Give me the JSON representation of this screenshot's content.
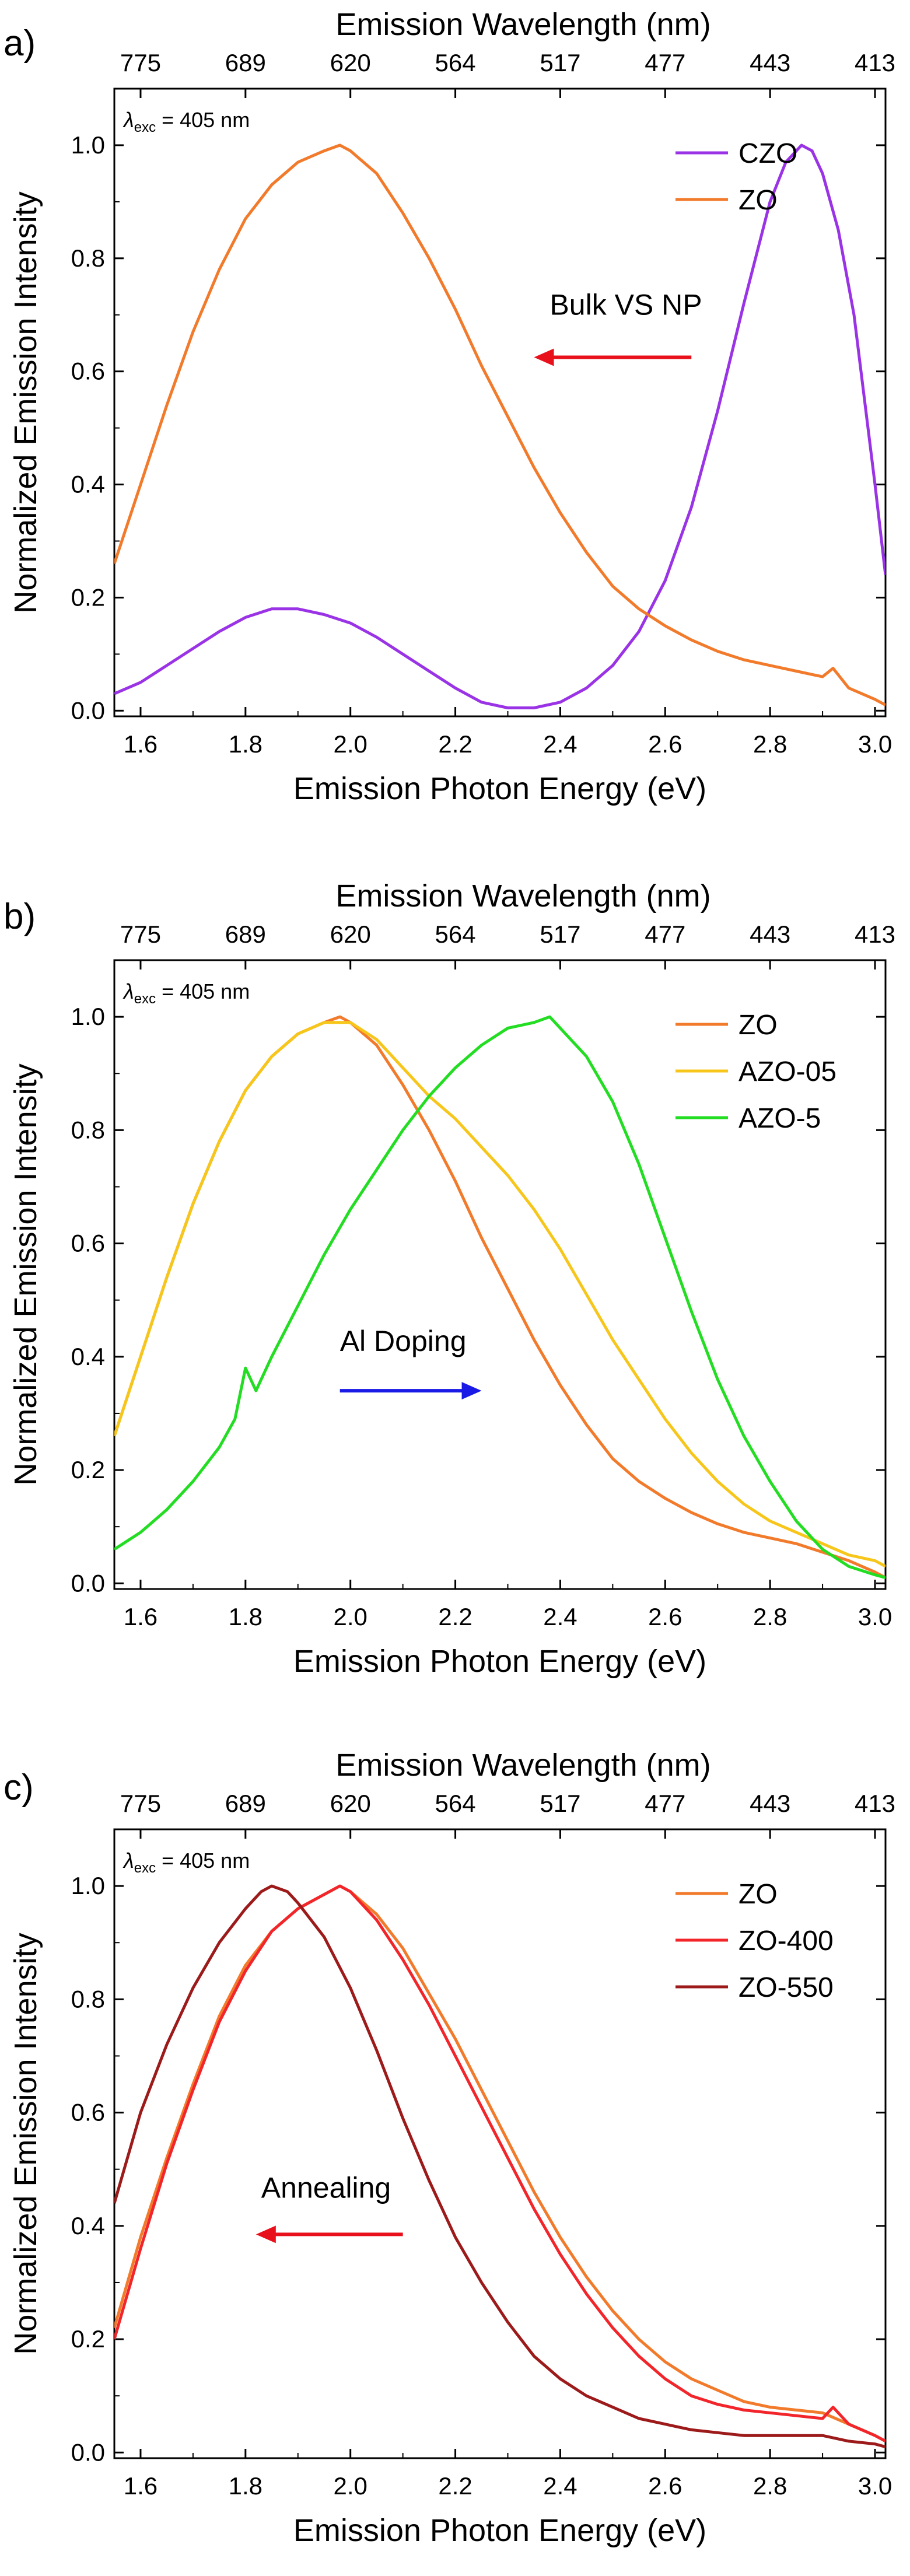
{
  "figure": {
    "top_axis_title": "Emission Wavelength (nm)",
    "bottom_axis_title": "Emission Photon Energy (eV)",
    "left_axis_title": "Normalized Emission Intensity",
    "excitation_prefix": "λ",
    "excitation_sub": "exc",
    "excitation_value": " = 405 nm"
  },
  "chart_data": [
    {
      "panel": "a)",
      "type": "line",
      "x_label": "Emission Photon Energy (eV)",
      "x2_label": "Emission Wavelength (nm)",
      "y_label": "Normalized Emission Intensity",
      "xlim": [
        1.55,
        3.02
      ],
      "ylim": [
        -0.01,
        1.1
      ],
      "x_ticks": [
        1.6,
        1.8,
        2.0,
        2.2,
        2.4,
        2.6,
        2.8,
        3.0
      ],
      "x_tick_labels": [
        "1.6",
        "1.8",
        "2.0",
        "2.2",
        "2.4",
        "2.6",
        "2.8",
        "3.0"
      ],
      "y_ticks": [
        0.0,
        0.2,
        0.4,
        0.6,
        0.8,
        1.0
      ],
      "y_tick_labels": [
        "0.0",
        "0.2",
        "0.4",
        "0.6",
        "0.8",
        "1.0"
      ],
      "top_ticks": [
        1.6,
        1.8,
        2.0,
        2.2,
        2.4,
        2.6,
        2.8,
        3.0
      ],
      "top_tick_labels": [
        "775",
        "689",
        "620",
        "564",
        "517",
        "477",
        "443",
        "413"
      ],
      "annotation": {
        "text": "Bulk VS NP",
        "arrow_color": "#e8101a",
        "arrow_from": 2.65,
        "arrow_to": 2.35,
        "arrow_y": 0.625,
        "text_x": 2.38,
        "text_y": 0.7
      },
      "series": [
        {
          "name": "CZO",
          "color": "#9a33e6",
          "x": [
            1.55,
            1.6,
            1.65,
            1.7,
            1.75,
            1.8,
            1.85,
            1.9,
            1.95,
            2.0,
            2.05,
            2.1,
            2.15,
            2.2,
            2.25,
            2.3,
            2.35,
            2.4,
            2.45,
            2.5,
            2.55,
            2.6,
            2.65,
            2.7,
            2.75,
            2.8,
            2.83,
            2.86,
            2.88,
            2.9,
            2.93,
            2.96,
            3.0,
            3.02
          ],
          "y": [
            0.03,
            0.05,
            0.08,
            0.11,
            0.14,
            0.165,
            0.18,
            0.18,
            0.17,
            0.155,
            0.13,
            0.1,
            0.07,
            0.04,
            0.015,
            0.005,
            0.005,
            0.015,
            0.04,
            0.08,
            0.14,
            0.23,
            0.36,
            0.53,
            0.72,
            0.9,
            0.97,
            1.0,
            0.99,
            0.95,
            0.85,
            0.7,
            0.4,
            0.24
          ]
        },
        {
          "name": "ZO",
          "color": "#f27a2b",
          "x": [
            1.55,
            1.6,
            1.65,
            1.7,
            1.75,
            1.8,
            1.85,
            1.9,
            1.95,
            1.98,
            2.0,
            2.05,
            2.1,
            2.15,
            2.2,
            2.25,
            2.3,
            2.35,
            2.4,
            2.45,
            2.5,
            2.55,
            2.6,
            2.65,
            2.7,
            2.75,
            2.8,
            2.85,
            2.9,
            2.92,
            2.95,
            3.0,
            3.02
          ],
          "y": [
            0.26,
            0.4,
            0.54,
            0.67,
            0.78,
            0.87,
            0.93,
            0.97,
            0.99,
            1.0,
            0.99,
            0.95,
            0.88,
            0.8,
            0.71,
            0.61,
            0.52,
            0.43,
            0.35,
            0.28,
            0.22,
            0.18,
            0.15,
            0.125,
            0.105,
            0.09,
            0.08,
            0.07,
            0.06,
            0.075,
            0.04,
            0.02,
            0.01
          ]
        }
      ]
    },
    {
      "panel": "b)",
      "type": "line",
      "x_label": "Emission Photon Energy (eV)",
      "x2_label": "Emission Wavelength (nm)",
      "y_label": "Normalized Emission Intensity",
      "xlim": [
        1.55,
        3.02
      ],
      "ylim": [
        -0.01,
        1.1
      ],
      "x_ticks": [
        1.6,
        1.8,
        2.0,
        2.2,
        2.4,
        2.6,
        2.8,
        3.0
      ],
      "x_tick_labels": [
        "1.6",
        "1.8",
        "2.0",
        "2.2",
        "2.4",
        "2.6",
        "2.8",
        "3.0"
      ],
      "y_ticks": [
        0.0,
        0.2,
        0.4,
        0.6,
        0.8,
        1.0
      ],
      "y_tick_labels": [
        "0.0",
        "0.2",
        "0.4",
        "0.6",
        "0.8",
        "1.0"
      ],
      "top_ticks": [
        1.6,
        1.8,
        2.0,
        2.2,
        2.4,
        2.6,
        2.8,
        3.0
      ],
      "top_tick_labels": [
        "775",
        "689",
        "620",
        "564",
        "517",
        "477",
        "443",
        "413"
      ],
      "annotation": {
        "text": "Al Doping",
        "arrow_color": "#1a1ae6",
        "arrow_from": 1.98,
        "arrow_to": 2.25,
        "arrow_y": 0.34,
        "text_x": 1.98,
        "text_y": 0.41
      },
      "series": [
        {
          "name": "ZO",
          "color": "#f27a2b",
          "x": [
            1.55,
            1.6,
            1.65,
            1.7,
            1.75,
            1.8,
            1.85,
            1.9,
            1.95,
            1.98,
            2.0,
            2.05,
            2.1,
            2.15,
            2.2,
            2.25,
            2.3,
            2.35,
            2.4,
            2.45,
            2.5,
            2.55,
            2.6,
            2.65,
            2.7,
            2.75,
            2.8,
            2.85,
            2.9,
            2.95,
            3.0,
            3.02
          ],
          "y": [
            0.26,
            0.4,
            0.54,
            0.67,
            0.78,
            0.87,
            0.93,
            0.97,
            0.99,
            1.0,
            0.99,
            0.95,
            0.88,
            0.8,
            0.71,
            0.61,
            0.52,
            0.43,
            0.35,
            0.28,
            0.22,
            0.18,
            0.15,
            0.125,
            0.105,
            0.09,
            0.08,
            0.07,
            0.055,
            0.04,
            0.02,
            0.01
          ]
        },
        {
          "name": "AZO-05",
          "color": "#f7c61a",
          "x": [
            1.55,
            1.6,
            1.65,
            1.7,
            1.75,
            1.8,
            1.85,
            1.9,
            1.95,
            2.0,
            2.05,
            2.1,
            2.15,
            2.2,
            2.25,
            2.3,
            2.35,
            2.4,
            2.45,
            2.5,
            2.55,
            2.6,
            2.65,
            2.7,
            2.75,
            2.8,
            2.85,
            2.9,
            2.95,
            3.0,
            3.02
          ],
          "y": [
            0.26,
            0.4,
            0.54,
            0.67,
            0.78,
            0.87,
            0.93,
            0.97,
            0.99,
            0.99,
            0.96,
            0.91,
            0.86,
            0.82,
            0.77,
            0.72,
            0.66,
            0.59,
            0.51,
            0.43,
            0.36,
            0.29,
            0.23,
            0.18,
            0.14,
            0.11,
            0.09,
            0.07,
            0.05,
            0.04,
            0.03
          ]
        },
        {
          "name": "AZO-5",
          "color": "#22dd22",
          "x": [
            1.55,
            1.6,
            1.65,
            1.7,
            1.75,
            1.78,
            1.8,
            1.82,
            1.85,
            1.9,
            1.95,
            2.0,
            2.05,
            2.1,
            2.15,
            2.2,
            2.25,
            2.3,
            2.35,
            2.38,
            2.4,
            2.45,
            2.5,
            2.55,
            2.6,
            2.65,
            2.7,
            2.75,
            2.8,
            2.85,
            2.9,
            2.95,
            3.0,
            3.02
          ],
          "y": [
            0.06,
            0.09,
            0.13,
            0.18,
            0.24,
            0.29,
            0.38,
            0.34,
            0.4,
            0.49,
            0.58,
            0.66,
            0.73,
            0.8,
            0.86,
            0.91,
            0.95,
            0.98,
            0.99,
            1.0,
            0.98,
            0.93,
            0.85,
            0.74,
            0.61,
            0.48,
            0.36,
            0.26,
            0.18,
            0.11,
            0.06,
            0.03,
            0.015,
            0.01
          ]
        }
      ]
    },
    {
      "panel": "c)",
      "type": "line",
      "x_label": "Emission Photon Energy (eV)",
      "x2_label": "Emission Wavelength (nm)",
      "y_label": "Normalized Emission Intensity",
      "xlim": [
        1.55,
        3.02
      ],
      "ylim": [
        -0.01,
        1.1
      ],
      "x_ticks": [
        1.6,
        1.8,
        2.0,
        2.2,
        2.4,
        2.6,
        2.8,
        3.0
      ],
      "x_tick_labels": [
        "1.6",
        "1.8",
        "2.0",
        "2.2",
        "2.4",
        "2.6",
        "2.8",
        "3.0"
      ],
      "y_ticks": [
        0.0,
        0.2,
        0.4,
        0.6,
        0.8,
        1.0
      ],
      "y_tick_labels": [
        "0.0",
        "0.2",
        "0.4",
        "0.6",
        "0.8",
        "1.0"
      ],
      "top_ticks": [
        1.6,
        1.8,
        2.0,
        2.2,
        2.4,
        2.6,
        2.8,
        3.0
      ],
      "top_tick_labels": [
        "775",
        "689",
        "620",
        "564",
        "517",
        "477",
        "443",
        "413"
      ],
      "annotation": {
        "text": "Annealing",
        "arrow_color": "#e8101a",
        "arrow_from": 2.1,
        "arrow_to": 1.82,
        "arrow_y": 0.385,
        "text_x": 1.83,
        "text_y": 0.45
      },
      "series": [
        {
          "name": "ZO",
          "color": "#f27a2b",
          "x": [
            1.55,
            1.6,
            1.65,
            1.7,
            1.75,
            1.8,
            1.85,
            1.9,
            1.95,
            1.98,
            2.0,
            2.05,
            2.1,
            2.15,
            2.2,
            2.25,
            2.3,
            2.35,
            2.4,
            2.45,
            2.5,
            2.55,
            2.6,
            2.65,
            2.7,
            2.75,
            2.8,
            2.85,
            2.9,
            2.95,
            3.0,
            3.02
          ],
          "y": [
            0.22,
            0.38,
            0.52,
            0.65,
            0.77,
            0.86,
            0.92,
            0.96,
            0.985,
            1.0,
            0.99,
            0.95,
            0.89,
            0.81,
            0.73,
            0.64,
            0.55,
            0.46,
            0.38,
            0.31,
            0.25,
            0.2,
            0.16,
            0.13,
            0.11,
            0.09,
            0.08,
            0.075,
            0.07,
            0.05,
            0.03,
            0.02
          ]
        },
        {
          "name": "ZO-400",
          "color": "#f2252a",
          "x": [
            1.55,
            1.6,
            1.65,
            1.7,
            1.75,
            1.8,
            1.85,
            1.9,
            1.95,
            1.98,
            2.0,
            2.05,
            2.1,
            2.15,
            2.2,
            2.25,
            2.3,
            2.35,
            2.4,
            2.45,
            2.5,
            2.55,
            2.6,
            2.65,
            2.7,
            2.75,
            2.8,
            2.85,
            2.9,
            2.92,
            2.95,
            3.0,
            3.02
          ],
          "y": [
            0.2,
            0.36,
            0.51,
            0.64,
            0.76,
            0.85,
            0.92,
            0.96,
            0.985,
            1.0,
            0.99,
            0.94,
            0.87,
            0.79,
            0.7,
            0.61,
            0.52,
            0.43,
            0.35,
            0.28,
            0.22,
            0.17,
            0.13,
            0.1,
            0.085,
            0.075,
            0.07,
            0.065,
            0.06,
            0.08,
            0.05,
            0.03,
            0.02
          ]
        },
        {
          "name": "ZO-550",
          "color": "#9c1a1a",
          "x": [
            1.55,
            1.6,
            1.65,
            1.7,
            1.75,
            1.8,
            1.83,
            1.85,
            1.88,
            1.9,
            1.95,
            2.0,
            2.05,
            2.1,
            2.15,
            2.2,
            2.25,
            2.3,
            2.35,
            2.4,
            2.45,
            2.5,
            2.55,
            2.6,
            2.65,
            2.7,
            2.75,
            2.8,
            2.85,
            2.9,
            2.95,
            3.0,
            3.02
          ],
          "y": [
            0.44,
            0.6,
            0.72,
            0.82,
            0.9,
            0.96,
            0.99,
            1.0,
            0.99,
            0.97,
            0.91,
            0.82,
            0.71,
            0.59,
            0.48,
            0.38,
            0.3,
            0.23,
            0.17,
            0.13,
            0.1,
            0.08,
            0.06,
            0.05,
            0.04,
            0.035,
            0.03,
            0.03,
            0.03,
            0.03,
            0.02,
            0.015,
            0.01
          ]
        }
      ]
    }
  ]
}
